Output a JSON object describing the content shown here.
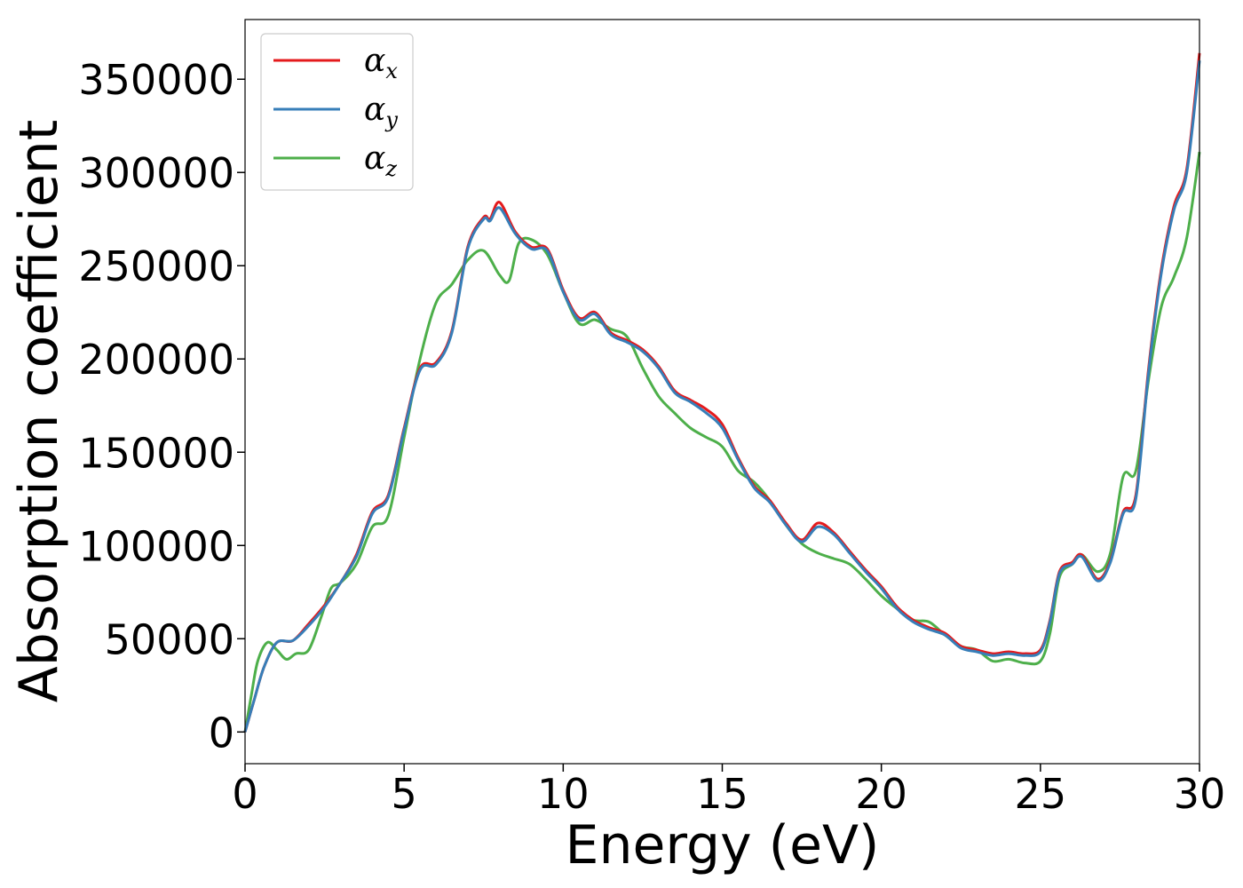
{
  "chart_data": {
    "type": "line",
    "title": "",
    "xlabel": "Energy (eV)",
    "ylabel": "Absorption coefficient",
    "xlim": [
      0,
      30
    ],
    "ylim": [
      -17000,
      382000
    ],
    "xticks": [
      0,
      5,
      10,
      15,
      20,
      25,
      30
    ],
    "yticks": [
      0,
      50000,
      100000,
      150000,
      200000,
      250000,
      300000,
      350000
    ],
    "grid": false,
    "legend_position": "top-left",
    "series": [
      {
        "name": "α_x",
        "symbol": "α",
        "subscript": "x",
        "color": "#e41a1c",
        "x": [
          0,
          0.3,
          0.6,
          1.0,
          1.5,
          2.0,
          2.5,
          3.0,
          3.5,
          4.0,
          4.5,
          5.0,
          5.5,
          6.0,
          6.5,
          7.0,
          7.5,
          7.7,
          8.0,
          8.5,
          9.0,
          9.5,
          10.0,
          10.5,
          11.0,
          11.5,
          12.0,
          12.5,
          13.0,
          13.5,
          14.0,
          14.5,
          15.0,
          15.5,
          16.0,
          16.5,
          17.0,
          17.5,
          18.0,
          18.5,
          19.0,
          19.5,
          20.0,
          20.5,
          21.0,
          21.5,
          22.0,
          22.5,
          23.0,
          23.5,
          24.0,
          24.5,
          25.0,
          25.3,
          25.6,
          26.0,
          26.3,
          26.8,
          27.2,
          27.6,
          28.0,
          28.4,
          28.8,
          29.2,
          29.6,
          30.0
        ],
        "y": [
          0,
          18000,
          35000,
          48000,
          49000,
          58000,
          68000,
          80000,
          95000,
          118000,
          127000,
          163000,
          195000,
          198000,
          215000,
          260000,
          276000,
          275000,
          284000,
          268000,
          260000,
          259000,
          237000,
          222000,
          225000,
          214000,
          210000,
          205000,
          196000,
          183000,
          178000,
          173000,
          165000,
          147000,
          132000,
          124000,
          112000,
          103000,
          112000,
          107000,
          97000,
          87000,
          78000,
          67000,
          60000,
          56000,
          53000,
          46000,
          44000,
          42000,
          43000,
          42000,
          44000,
          60000,
          86000,
          91000,
          95000,
          82000,
          92000,
          118000,
          127000,
          195000,
          248000,
          282000,
          302000,
          364000
        ]
      },
      {
        "name": "α_y",
        "symbol": "α",
        "subscript": "y",
        "color": "#377eb8",
        "x": [
          0,
          0.3,
          0.6,
          1.0,
          1.5,
          2.0,
          2.5,
          3.0,
          3.5,
          4.0,
          4.5,
          5.0,
          5.5,
          6.0,
          6.5,
          7.0,
          7.5,
          7.7,
          8.0,
          8.5,
          9.0,
          9.5,
          10.0,
          10.5,
          11.0,
          11.5,
          12.0,
          12.5,
          13.0,
          13.5,
          14.0,
          14.5,
          15.0,
          15.5,
          16.0,
          16.5,
          17.0,
          17.5,
          18.0,
          18.5,
          19.0,
          19.5,
          20.0,
          20.5,
          21.0,
          21.5,
          22.0,
          22.5,
          23.0,
          23.5,
          24.0,
          24.5,
          25.0,
          25.3,
          25.6,
          26.0,
          26.3,
          26.8,
          27.2,
          27.6,
          28.0,
          28.4,
          28.8,
          29.2,
          29.6,
          30.0
        ],
        "y": [
          0,
          18000,
          35000,
          48000,
          49000,
          57000,
          67000,
          80000,
          94000,
          117000,
          126000,
          162000,
          194000,
          197000,
          214000,
          259000,
          275000,
          274000,
          281000,
          267000,
          259000,
          258000,
          236000,
          221000,
          224000,
          213000,
          209000,
          204000,
          195000,
          182000,
          177000,
          171000,
          163000,
          146000,
          131000,
          123000,
          111000,
          102000,
          110000,
          106000,
          96000,
          86000,
          77000,
          66000,
          59000,
          55000,
          52000,
          45000,
          43000,
          41000,
          42000,
          41000,
          43000,
          59000,
          85000,
          90000,
          94000,
          81000,
          91000,
          117000,
          125000,
          193000,
          246000,
          280000,
          300000,
          360000
        ]
      },
      {
        "name": "α_z",
        "symbol": "α",
        "subscript": "z",
        "color": "#4daf4a",
        "x": [
          0,
          0.2,
          0.4,
          0.7,
          1.0,
          1.3,
          1.6,
          2.0,
          2.4,
          2.7,
          3.0,
          3.5,
          4.0,
          4.5,
          5.0,
          5.5,
          6.0,
          6.5,
          7.0,
          7.5,
          8.0,
          8.3,
          8.6,
          9.0,
          9.5,
          10.0,
          10.5,
          11.0,
          11.5,
          12.0,
          12.5,
          13.0,
          13.5,
          14.0,
          14.5,
          15.0,
          15.5,
          16.0,
          16.5,
          17.0,
          17.5,
          18.0,
          18.5,
          19.0,
          19.5,
          20.0,
          20.5,
          21.0,
          21.5,
          22.0,
          22.5,
          23.0,
          23.5,
          24.0,
          24.5,
          25.0,
          25.3,
          25.6,
          26.0,
          26.3,
          26.8,
          27.2,
          27.6,
          28.0,
          28.4,
          28.8,
          29.2,
          29.6,
          30.0
        ],
        "y": [
          0,
          20000,
          38000,
          48000,
          44000,
          39000,
          42000,
          44000,
          62000,
          77000,
          80000,
          90000,
          110000,
          116000,
          158000,
          200000,
          230000,
          240000,
          253000,
          258000,
          245000,
          242000,
          262000,
          264000,
          256000,
          236000,
          219000,
          221000,
          216000,
          212000,
          195000,
          180000,
          171000,
          163000,
          158000,
          153000,
          140000,
          134000,
          124000,
          111000,
          101000,
          96000,
          93000,
          90000,
          82000,
          73000,
          66000,
          60000,
          59000,
          52000,
          46000,
          44000,
          38000,
          39000,
          37000,
          38000,
          53000,
          83000,
          90000,
          95000,
          86000,
          96000,
          137000,
          140000,
          189000,
          228000,
          244000,
          265000,
          311000
        ]
      }
    ]
  }
}
